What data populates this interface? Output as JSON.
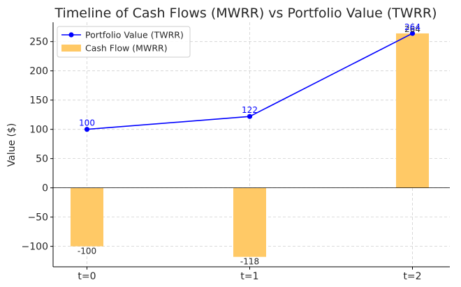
{
  "chart_data": {
    "type": "bar+line",
    "title": "Timeline of Cash Flows (MWRR) vs Portfolio Value (TWRR)",
    "xlabel": "",
    "ylabel": "Value ($)",
    "categories": [
      "t=0",
      "t=1",
      "t=2"
    ],
    "ylim": [
      -135,
      283
    ],
    "yticks": [
      -100,
      -50,
      0,
      50,
      100,
      150,
      200,
      250
    ],
    "ytick_labels": [
      "−100",
      "−50",
      "0",
      "50",
      "100",
      "150",
      "200",
      "250"
    ],
    "grid": true,
    "legend_position": "top-left",
    "series": [
      {
        "name": "Portfolio Value (TWRR)",
        "kind": "line",
        "color": "#0000ff",
        "values": [
          100,
          122,
          264
        ],
        "labels": [
          "100",
          "122",
          "264"
        ]
      },
      {
        "name": "Cash Flow (MWRR)",
        "kind": "bar",
        "color": "#ffc966",
        "values": [
          -100,
          -118,
          264
        ],
        "labels": [
          "-100",
          "-118",
          "264"
        ]
      }
    ]
  }
}
